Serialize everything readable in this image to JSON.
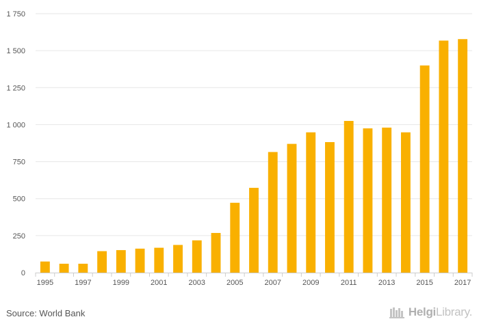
{
  "chart_data": {
    "type": "bar",
    "categories": [
      "1995",
      "1996",
      "1997",
      "1998",
      "1999",
      "2000",
      "2001",
      "2002",
      "2003",
      "2004",
      "2005",
      "2006",
      "2007",
      "2008",
      "2009",
      "2010",
      "2011",
      "2012",
      "2013",
      "2014",
      "2015",
      "2016",
      "2017"
    ],
    "values": [
      75,
      60,
      60,
      145,
      152,
      162,
      168,
      187,
      218,
      268,
      472,
      573,
      815,
      870,
      948,
      882,
      1025,
      975,
      980,
      948,
      1400,
      1568,
      1578
    ],
    "x_tick_labels": [
      "1995",
      "1997",
      "1999",
      "2001",
      "2003",
      "2005",
      "2007",
      "2009",
      "2011",
      "2013",
      "2015",
      "2017"
    ],
    "y_ticks": [
      0,
      250,
      500,
      750,
      1000,
      1250,
      1500,
      1750
    ],
    "y_tick_labels": [
      "0",
      "250",
      "500",
      "750",
      "1 000",
      "1 250",
      "1 500",
      "1 750"
    ],
    "ylim": [
      0,
      1750
    ],
    "grid": true,
    "legend": "none",
    "bar_color": "#F9B000",
    "title": "",
    "xlabel": "",
    "ylabel": ""
  },
  "footer": {
    "source": "Source: World Bank",
    "brand_bold": "Helgi",
    "brand_rest": "Library."
  },
  "colors": {
    "grid": "#e6e6e6",
    "axis": "#cccccc",
    "text": "#555555"
  }
}
